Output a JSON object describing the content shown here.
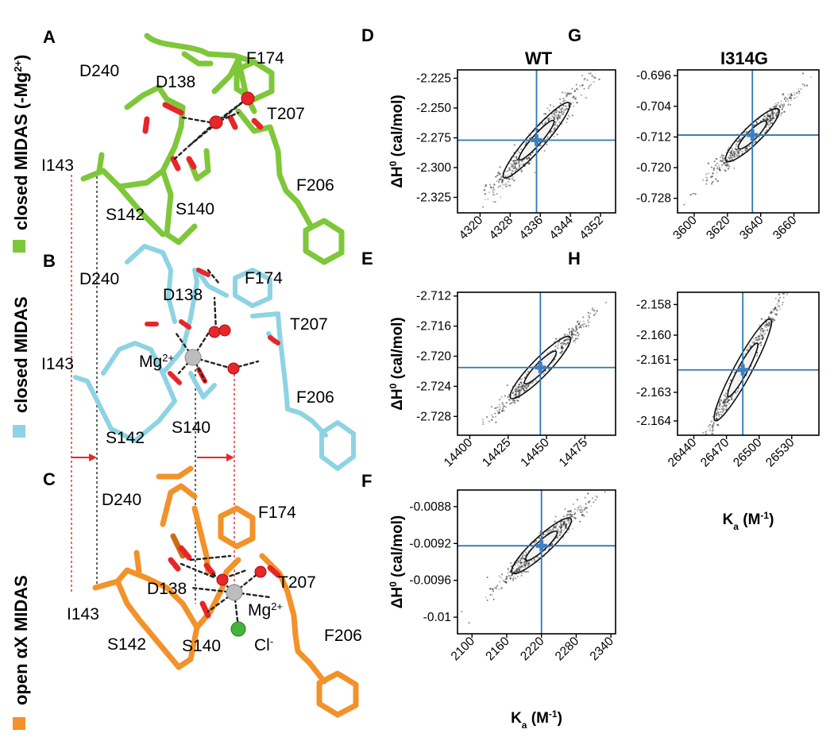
{
  "panels": {
    "A": {
      "letter": "A",
      "side_label": "closed MIDAS (-Mg2+)",
      "side_label_main": "closed MIDAS (-Mg",
      "side_label_sup": "2+",
      "side_label_end": ")",
      "residues": {
        "d240": "D240",
        "d138": "D138",
        "f174": "F174",
        "t207": "T207",
        "i143": "I143",
        "f206": "F206",
        "s142": "S142",
        "s140": "S140"
      }
    },
    "B": {
      "letter": "B",
      "side_label": "closed MIDAS",
      "residues": {
        "d240": "D240",
        "d138": "D138",
        "f174": "F174",
        "t207": "T207",
        "i143": "I143",
        "f206": "F206",
        "s142": "S142",
        "s140": "S140"
      },
      "ion": "Mg",
      "ion_sup": "2+"
    },
    "C": {
      "letter": "C",
      "side_label": "open αX MIDAS",
      "residues": {
        "d240": "D240",
        "f174": "F174",
        "t207": "T207",
        "d138": "D138",
        "i143": "I143",
        "s142": "S142",
        "s140": "S140",
        "f206": "F206"
      },
      "ion": "Mg",
      "ion_sup": "2+",
      "anion": "Cl",
      "anion_sup": "-"
    }
  },
  "colors": {
    "green": "#7ec73a",
    "green_dark": "#5e9a23",
    "cyan": "#8dd3e4",
    "cyan_dark": "#5fb1c8",
    "orange": "#f2922a",
    "orange_dark": "#c86f14",
    "oxygen": "#e8262a",
    "mg": "#bdbdbd",
    "cl": "#45b23b",
    "guide_red": "#e8262a",
    "crosshair": "#2f78b5",
    "estimate": "#3d7fc1"
  },
  "column_titles": {
    "wt": "WT",
    "mut": "I314G"
  },
  "axis_labels": {
    "y_main": "ΔH",
    "y_sup": "0",
    "y_unit": " (cal/mol)",
    "x_main": "K",
    "x_sub": "a",
    "x_unit": " (M",
    "x_sup": "-1",
    "x_end": ")"
  },
  "chart_data": [
    {
      "panel": "D",
      "type": "scatter",
      "column": "WT",
      "ylabel": "ΔH0 (cal/mol)",
      "xlabel": "",
      "xticks": [
        "4320",
        "4328",
        "4336",
        "4344",
        "4352"
      ],
      "yticks": [
        "-2.225",
        "-2.250",
        "-2.275",
        "-2.300",
        "-2.325"
      ],
      "xlim": [
        4314,
        4356
      ],
      "ylim": [
        -2.338,
        -2.218
      ],
      "estimate": {
        "x": 4335,
        "y": -2.277
      },
      "cloud": {
        "x_spread": 7.2,
        "y_slope": 0.0036,
        "y_noise": 0.006
      }
    },
    {
      "panel": "E",
      "type": "scatter",
      "column": "WT",
      "ylabel": "ΔH0 (cal/mol)",
      "xlabel": "",
      "xticks": [
        "14400",
        "14425",
        "14450",
        "14475"
      ],
      "yticks": [
        "-2.712",
        "-2.716",
        "-2.720",
        "-2.724",
        "-2.728"
      ],
      "xlim": [
        14392,
        14495
      ],
      "ylim": [
        -2.7305,
        -2.7115
      ],
      "estimate": {
        "x": 14446,
        "y": -2.7215
      },
      "cloud": {
        "x_spread": 16,
        "y_slope": 0.00021,
        "y_noise": 0.0006
      }
    },
    {
      "panel": "F",
      "type": "scatter",
      "column": "WT",
      "ylabel": "ΔH0 (cal/mol)",
      "xlabel": "Ka (M-1)",
      "xticks": [
        "2100",
        "2160",
        "2220",
        "2280",
        "2340"
      ],
      "yticks": [
        "-0.0088",
        "-0.0092",
        "-0.0096",
        "-0.01"
      ],
      "xlim": [
        2075,
        2348
      ],
      "ylim": [
        -0.01018,
        -0.00862
      ],
      "estimate": {
        "x": 2220,
        "y": -0.009225
      },
      "cloud": {
        "x_spread": 42,
        "y_slope": 5.8e-06,
        "y_noise": 6e-05
      }
    },
    {
      "panel": "G",
      "type": "scatter",
      "column": "I314G",
      "ylabel": "",
      "xlabel": "",
      "xticks": [
        "3600",
        "3620",
        "3640",
        "3660"
      ],
      "yticks": [
        "-0.696",
        "-0.704",
        "-0.712",
        "-0.720",
        "-0.728"
      ],
      "xlim": [
        3590,
        3675
      ],
      "ylim": [
        -0.7318,
        -0.6945
      ],
      "estimate": {
        "x": 3635,
        "y": -0.7115
      },
      "cloud": {
        "x_spread": 13,
        "y_slope": 0.00043,
        "y_noise": 0.0012
      }
    },
    {
      "panel": "H",
      "type": "scatter",
      "column": "I314G",
      "ylabel": "",
      "xlabel": "Ka (M-1)",
      "xticks": [
        "26440",
        "26470",
        "26500",
        "26530"
      ],
      "yticks": [
        "-2.158",
        "-2.160",
        "-2.161",
        "-2.163",
        "-2.164"
      ],
      "ytick_values": [
        -2.1585,
        -2.16,
        -2.1612,
        -2.1628,
        -2.1642
      ],
      "xlim": [
        26425,
        26555
      ],
      "ylim": [
        -2.1649,
        -2.1579
      ],
      "estimate": {
        "x": 26485,
        "y": -2.1617
      },
      "cloud": {
        "x_spread": 21,
        "y_slope": 9.8e-05,
        "y_noise": 0.00025
      }
    }
  ]
}
